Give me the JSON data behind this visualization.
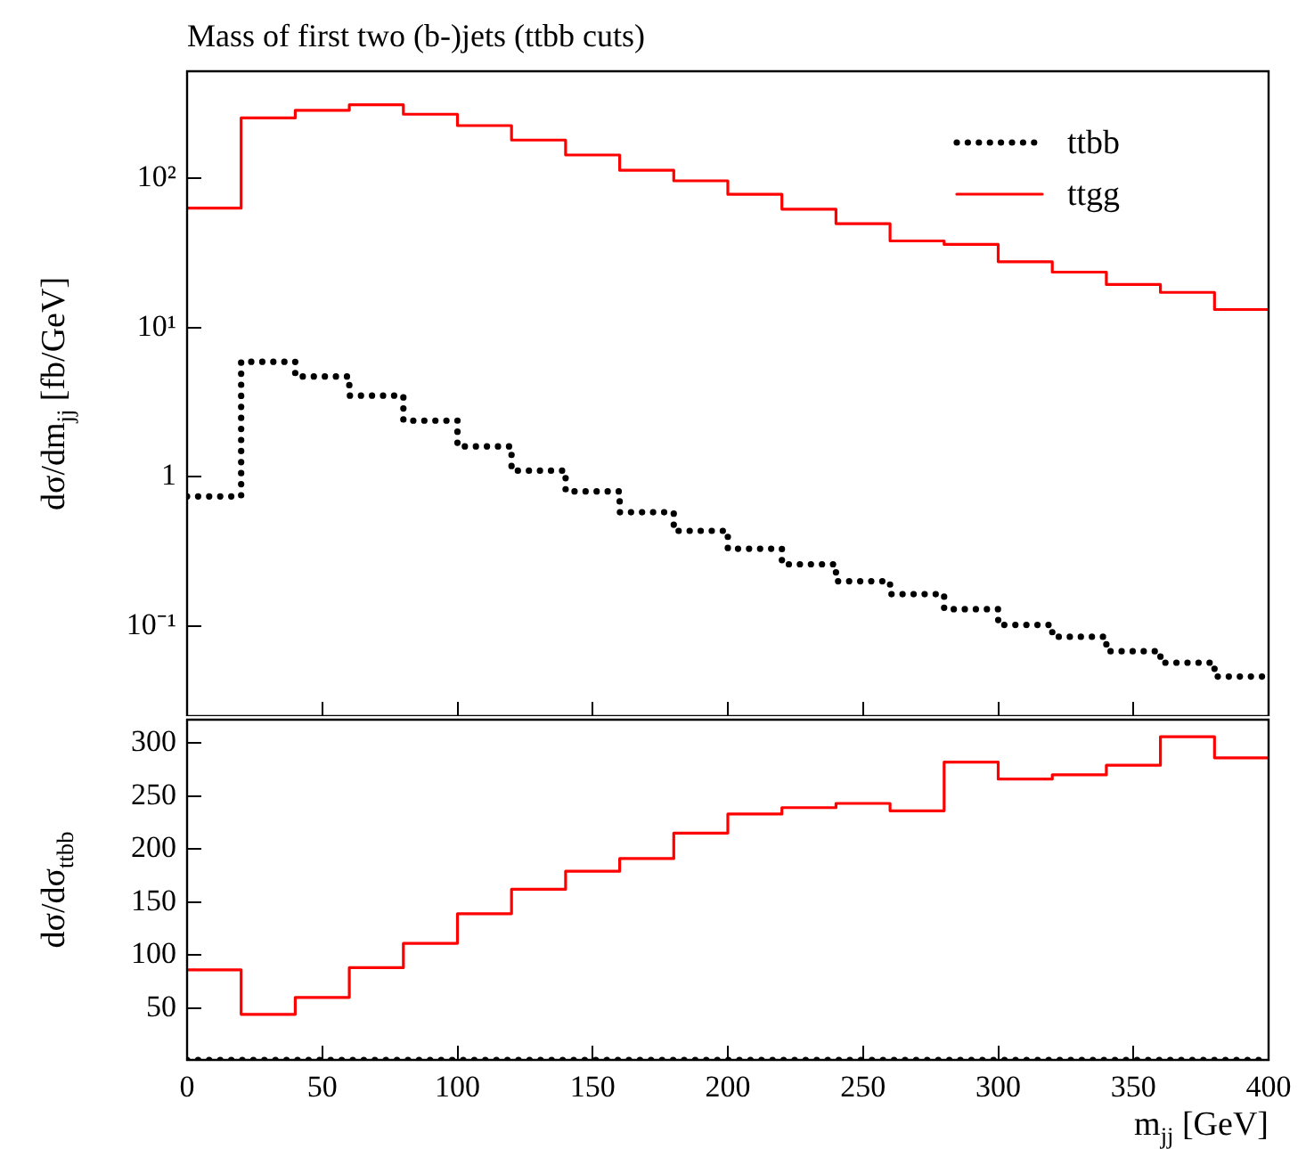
{
  "chart_data": [
    {
      "type": "histogram",
      "title": "Mass of first two (b-)jets (ttbb cuts)",
      "ylabel": "dσ/dm$_{jj}$ [fb/GeV]",
      "bins": [
        0,
        20,
        40,
        60,
        80,
        100,
        120,
        140,
        160,
        180,
        200,
        220,
        240,
        260,
        280,
        300,
        320,
        340,
        360,
        380,
        400
      ],
      "series": [
        {
          "name": "ttbb",
          "color": "#000000",
          "line_style": "dotted",
          "values": [
            0.74,
            5.9,
            4.7,
            3.5,
            2.38,
            1.6,
            1.1,
            0.8,
            0.58,
            0.435,
            0.33,
            0.26,
            0.2,
            0.164,
            0.13,
            0.102,
            0.085,
            0.068,
            0.057,
            0.046
          ]
        },
        {
          "name": "ttgg",
          "color": "#ff0000",
          "line_style": "solid",
          "values": [
            63,
            253,
            285,
            310,
            268,
            225,
            180,
            143,
            113,
            96,
            78,
            62,
            49.6,
            38,
            36,
            27.6,
            23.5,
            19.4,
            17.2,
            13.2
          ]
        }
      ],
      "xlim": [
        0,
        400
      ],
      "xticks": [
        0,
        50,
        100,
        150,
        200,
        250,
        300,
        350,
        400
      ],
      "ylim": [
        0.025,
        520
      ],
      "yticks": [
        {
          "value": 0.1,
          "label": "10⁻¹"
        },
        1,
        {
          "value": 10,
          "label": "10¹"
        },
        {
          "value": 100,
          "label": "10²"
        }
      ],
      "log": "y",
      "legend": "top right",
      "tick_labels": "y"
    },
    {
      "type": "histogram",
      "xlabel": "m$_{jj}$ [GeV]",
      "ylabel": "dσ/dσ$_{ttbb}$",
      "bins": [
        0,
        20,
        40,
        60,
        80,
        100,
        120,
        140,
        160,
        180,
        200,
        220,
        240,
        260,
        280,
        300,
        320,
        340,
        360,
        380,
        400
      ],
      "series": [
        {
          "color": "#000000",
          "line_style": "dotted",
          "values": [
            1,
            1,
            1,
            1,
            1,
            1,
            1,
            1,
            1,
            1,
            1,
            1,
            1,
            1,
            1,
            1,
            1,
            1,
            1,
            1
          ]
        },
        {
          "color": "#ff0000",
          "line_style": "solid",
          "values": [
            86,
            44,
            60,
            88,
            111,
            139,
            162,
            179,
            191,
            215,
            233,
            239,
            243,
            236,
            282,
            266,
            270,
            279,
            306,
            286
          ]
        }
      ],
      "xlim": [
        0,
        400
      ],
      "xticks": [
        0,
        50,
        100,
        150,
        200,
        250,
        300,
        350,
        400
      ],
      "ylim": [
        1,
        322
      ],
      "yticks": [
        50,
        100,
        150,
        200,
        250,
        300
      ]
    }
  ]
}
